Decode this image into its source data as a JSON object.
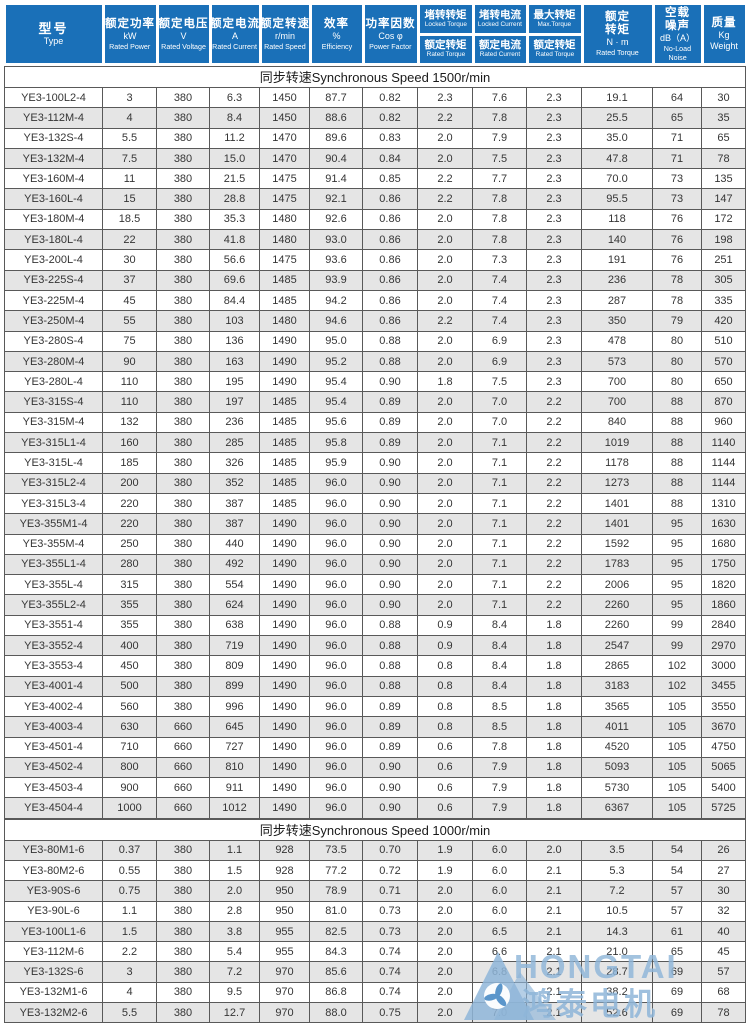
{
  "colors": {
    "header_blue": "#1a70b8",
    "row_stripe": "#e5e5e5",
    "border": "#595959",
    "watermark_blue": "#8fb6d9"
  },
  "watermark": {
    "brand": "HONGTAI",
    "brand_zh": "鸿泰电机",
    "icon": "mountain-swirl-logo"
  },
  "table": {
    "columns": [
      {
        "lines": [
          {
            "t": "型号",
            "c": "zh-big"
          },
          {
            "t": "Type",
            "c": "unit"
          }
        ]
      },
      {
        "lines": [
          {
            "t": "额定功率",
            "c": "zh"
          },
          {
            "t": "kW",
            "c": "unit"
          },
          {
            "t": "Rated Power",
            "c": "en"
          }
        ]
      },
      {
        "lines": [
          {
            "t": "额定电压",
            "c": "zh"
          },
          {
            "t": "V",
            "c": "unit"
          },
          {
            "t": "Rated Voltage",
            "c": "en"
          }
        ]
      },
      {
        "lines": [
          {
            "t": "额定电流",
            "c": "zh"
          },
          {
            "t": "A",
            "c": "unit"
          },
          {
            "t": "Rated Current",
            "c": "en"
          }
        ]
      },
      {
        "lines": [
          {
            "t": "额定转速",
            "c": "zh"
          },
          {
            "t": "r/min",
            "c": "unit"
          },
          {
            "t": "Rated Speed",
            "c": "en"
          }
        ]
      },
      {
        "lines": [
          {
            "t": "效率",
            "c": "zh"
          },
          {
            "t": "%",
            "c": "unit"
          },
          {
            "t": "Efficiency",
            "c": "en"
          }
        ]
      },
      {
        "lines": [
          {
            "t": "功率因数",
            "c": "zh"
          },
          {
            "t": "Cos φ",
            "c": "unit"
          },
          {
            "t": "Power Factor",
            "c": "en"
          }
        ]
      },
      {
        "split": {
          "top": [
            "堵转转矩",
            "Locked Torque"
          ],
          "bottom": [
            "额定转矩",
            "Rated Torque"
          ]
        }
      },
      {
        "split": {
          "top": [
            "堵转电流",
            "Locked Current"
          ],
          "bottom": [
            "额定电流",
            "Rated Current"
          ]
        }
      },
      {
        "split": {
          "top": [
            "最大转矩",
            "Max.Torque"
          ],
          "bottom": [
            "额定转矩",
            "Rated Torque"
          ]
        }
      },
      {
        "lines": [
          {
            "t": "额定",
            "c": "zh"
          },
          {
            "t": "转矩",
            "c": "zh"
          },
          {
            "t": "N · m",
            "c": "unit"
          },
          {
            "t": "Rated Torque",
            "c": "en"
          }
        ]
      },
      {
        "lines": [
          {
            "t": "空载",
            "c": "zh"
          },
          {
            "t": "噪声",
            "c": "zh"
          },
          {
            "t": "dB（A）",
            "c": "unit"
          },
          {
            "t": "No-Load",
            "c": "en"
          },
          {
            "t": "Noise",
            "c": "en"
          }
        ]
      },
      {
        "lines": [
          {
            "t": "质量",
            "c": "zh"
          },
          {
            "t": "Kg",
            "c": "unit"
          },
          {
            "t": "Weight",
            "c": "unit"
          }
        ]
      }
    ],
    "sections": [
      {
        "title": "同步转速Synchronous Speed  1500r/min",
        "rows": [
          [
            "YE3-100L2-4",
            "3",
            "380",
            "6.3",
            "1450",
            "87.7",
            "0.82",
            "2.3",
            "7.6",
            "2.3",
            "19.1",
            "64",
            "30"
          ],
          [
            "YE3-112M-4",
            "4",
            "380",
            "8.4",
            "1450",
            "88.6",
            "0.82",
            "2.2",
            "7.8",
            "2.3",
            "25.5",
            "65",
            "35"
          ],
          [
            "YE3-132S-4",
            "5.5",
            "380",
            "11.2",
            "1470",
            "89.6",
            "0.83",
            "2.0",
            "7.9",
            "2.3",
            "35.0",
            "71",
            "65"
          ],
          [
            "YE3-132M-4",
            "7.5",
            "380",
            "15.0",
            "1470",
            "90.4",
            "0.84",
            "2.0",
            "7.5",
            "2.3",
            "47.8",
            "71",
            "78"
          ],
          [
            "YE3-160M-4",
            "11",
            "380",
            "21.5",
            "1475",
            "91.4",
            "0.85",
            "2.2",
            "7.7",
            "2.3",
            "70.0",
            "73",
            "135"
          ],
          [
            "YE3-160L-4",
            "15",
            "380",
            "28.8",
            "1475",
            "92.1",
            "0.86",
            "2.2",
            "7.8",
            "2.3",
            "95.5",
            "73",
            "147"
          ],
          [
            "YE3-180M-4",
            "18.5",
            "380",
            "35.3",
            "1480",
            "92.6",
            "0.86",
            "2.0",
            "7.8",
            "2.3",
            "118",
            "76",
            "172"
          ],
          [
            "YE3-180L-4",
            "22",
            "380",
            "41.8",
            "1480",
            "93.0",
            "0.86",
            "2.0",
            "7.8",
            "2.3",
            "140",
            "76",
            "198"
          ],
          [
            "YE3-200L-4",
            "30",
            "380",
            "56.6",
            "1475",
            "93.6",
            "0.86",
            "2.0",
            "7.3",
            "2.3",
            "191",
            "76",
            "251"
          ],
          [
            "YE3-225S-4",
            "37",
            "380",
            "69.6",
            "1485",
            "93.9",
            "0.86",
            "2.0",
            "7.4",
            "2.3",
            "236",
            "78",
            "305"
          ],
          [
            "YE3-225M-4",
            "45",
            "380",
            "84.4",
            "1485",
            "94.2",
            "0.86",
            "2.0",
            "7.4",
            "2.3",
            "287",
            "78",
            "335"
          ],
          [
            "YE3-250M-4",
            "55",
            "380",
            "103",
            "1480",
            "94.6",
            "0.86",
            "2.2",
            "7.4",
            "2.3",
            "350",
            "79",
            "420"
          ],
          [
            "YE3-280S-4",
            "75",
            "380",
            "136",
            "1490",
            "95.0",
            "0.88",
            "2.0",
            "6.9",
            "2.3",
            "478",
            "80",
            "510"
          ],
          [
            "YE3-280M-4",
            "90",
            "380",
            "163",
            "1490",
            "95.2",
            "0.88",
            "2.0",
            "6.9",
            "2.3",
            "573",
            "80",
            "570"
          ],
          [
            "YE3-280L-4",
            "110",
            "380",
            "195",
            "1490",
            "95.4",
            "0.90",
            "1.8",
            "7.5",
            "2.3",
            "700",
            "80",
            "650"
          ],
          [
            "YE3-315S-4",
            "110",
            "380",
            "197",
            "1485",
            "95.4",
            "0.89",
            "2.0",
            "7.0",
            "2.2",
            "700",
            "88",
            "870"
          ],
          [
            "YE3-315M-4",
            "132",
            "380",
            "236",
            "1485",
            "95.6",
            "0.89",
            "2.0",
            "7.0",
            "2.2",
            "840",
            "88",
            "960"
          ],
          [
            "YE3-315L1-4",
            "160",
            "380",
            "285",
            "1485",
            "95.8",
            "0.89",
            "2.0",
            "7.1",
            "2.2",
            "1019",
            "88",
            "1140"
          ],
          [
            "YE3-315L-4",
            "185",
            "380",
            "326",
            "1485",
            "95.9",
            "0.90",
            "2.0",
            "7.1",
            "2.2",
            "1178",
            "88",
            "1144"
          ],
          [
            "YE3-315L2-4",
            "200",
            "380",
            "352",
            "1485",
            "96.0",
            "0.90",
            "2.0",
            "7.1",
            "2.2",
            "1273",
            "88",
            "1144"
          ],
          [
            "YE3-315L3-4",
            "220",
            "380",
            "387",
            "1485",
            "96.0",
            "0.90",
            "2.0",
            "7.1",
            "2.2",
            "1401",
            "88",
            "1310"
          ],
          [
            "YE3-355M1-4",
            "220",
            "380",
            "387",
            "1490",
            "96.0",
            "0.90",
            "2.0",
            "7.1",
            "2.2",
            "1401",
            "95",
            "1630"
          ],
          [
            "YE3-355M-4",
            "250",
            "380",
            "440",
            "1490",
            "96.0",
            "0.90",
            "2.0",
            "7.1",
            "2.2",
            "1592",
            "95",
            "1680"
          ],
          [
            "YE3-355L1-4",
            "280",
            "380",
            "492",
            "1490",
            "96.0",
            "0.90",
            "2.0",
            "7.1",
            "2.2",
            "1783",
            "95",
            "1750"
          ],
          [
            "YE3-355L-4",
            "315",
            "380",
            "554",
            "1490",
            "96.0",
            "0.90",
            "2.0",
            "7.1",
            "2.2",
            "2006",
            "95",
            "1820"
          ],
          [
            "YE3-355L2-4",
            "355",
            "380",
            "624",
            "1490",
            "96.0",
            "0.90",
            "2.0",
            "7.1",
            "2.2",
            "2260",
            "95",
            "1860"
          ],
          [
            "YE3-3551-4",
            "355",
            "380",
            "638",
            "1490",
            "96.0",
            "0.88",
            "0.9",
            "8.4",
            "1.8",
            "2260",
            "99",
            "2840"
          ],
          [
            "YE3-3552-4",
            "400",
            "380",
            "719",
            "1490",
            "96.0",
            "0.88",
            "0.9",
            "8.4",
            "1.8",
            "2547",
            "99",
            "2970"
          ],
          [
            "YE3-3553-4",
            "450",
            "380",
            "809",
            "1490",
            "96.0",
            "0.88",
            "0.8",
            "8.4",
            "1.8",
            "2865",
            "102",
            "3000"
          ],
          [
            "YE3-4001-4",
            "500",
            "380",
            "899",
            "1490",
            "96.0",
            "0.88",
            "0.8",
            "8.4",
            "1.8",
            "3183",
            "102",
            "3455"
          ],
          [
            "YE3-4002-4",
            "560",
            "380",
            "996",
            "1490",
            "96.0",
            "0.89",
            "0.8",
            "8.5",
            "1.8",
            "3565",
            "105",
            "3550"
          ],
          [
            "YE3-4003-4",
            "630",
            "660",
            "645",
            "1490",
            "96.0",
            "0.89",
            "0.8",
            "8.5",
            "1.8",
            "4011",
            "105",
            "3670"
          ],
          [
            "YE3-4501-4",
            "710",
            "660",
            "727",
            "1490",
            "96.0",
            "0.89",
            "0.6",
            "7.8",
            "1.8",
            "4520",
            "105",
            "4750"
          ],
          [
            "YE3-4502-4",
            "800",
            "660",
            "810",
            "1490",
            "96.0",
            "0.90",
            "0.6",
            "7.9",
            "1.8",
            "5093",
            "105",
            "5065"
          ],
          [
            "YE3-4503-4",
            "900",
            "660",
            "911",
            "1490",
            "96.0",
            "0.90",
            "0.6",
            "7.9",
            "1.8",
            "5730",
            "105",
            "5400"
          ],
          [
            "YE3-4504-4",
            "1000",
            "660",
            "1012",
            "1490",
            "96.0",
            "0.90",
            "0.6",
            "7.9",
            "1.8",
            "6367",
            "105",
            "5725"
          ]
        ]
      },
      {
        "title": "同步转速Synchronous Speed  1000r/min",
        "rows": [
          [
            "YE3-80M1-6",
            "0.37",
            "380",
            "1.1",
            "928",
            "73.5",
            "0.70",
            "1.9",
            "6.0",
            "2.0",
            "3.5",
            "54",
            "26"
          ],
          [
            "YE3-80M2-6",
            "0.55",
            "380",
            "1.5",
            "928",
            "77.2",
            "0.72",
            "1.9",
            "6.0",
            "2.1",
            "5.3",
            "54",
            "27"
          ],
          [
            "YE3-90S-6",
            "0.75",
            "380",
            "2.0",
            "950",
            "78.9",
            "0.71",
            "2.0",
            "6.0",
            "2.1",
            "7.2",
            "57",
            "30"
          ],
          [
            "YE3-90L-6",
            "1.1",
            "380",
            "2.8",
            "950",
            "81.0",
            "0.73",
            "2.0",
            "6.0",
            "2.1",
            "10.5",
            "57",
            "32"
          ],
          [
            "YE3-100L1-6",
            "1.5",
            "380",
            "3.8",
            "955",
            "82.5",
            "0.73",
            "2.0",
            "6.5",
            "2.1",
            "14.3",
            "61",
            "40"
          ],
          [
            "YE3-112M-6",
            "2.2",
            "380",
            "5.4",
            "955",
            "84.3",
            "0.74",
            "2.0",
            "6.6",
            "2.1",
            "21.0",
            "65",
            "45"
          ],
          [
            "YE3-132S-6",
            "3",
            "380",
            "7.2",
            "970",
            "85.6",
            "0.74",
            "2.0",
            "6.8",
            "2.1",
            "28.7",
            "69",
            "57"
          ],
          [
            "YE3-132M1-6",
            "4",
            "380",
            "9.5",
            "970",
            "86.8",
            "0.74",
            "2.0",
            "6.8",
            "2.1",
            "38.2",
            "69",
            "68"
          ],
          [
            "YE3-132M2-6",
            "5.5",
            "380",
            "12.7",
            "970",
            "88.0",
            "0.75",
            "2.0",
            "7.0",
            "2.1",
            "52.6",
            "69",
            "78"
          ]
        ]
      }
    ]
  }
}
